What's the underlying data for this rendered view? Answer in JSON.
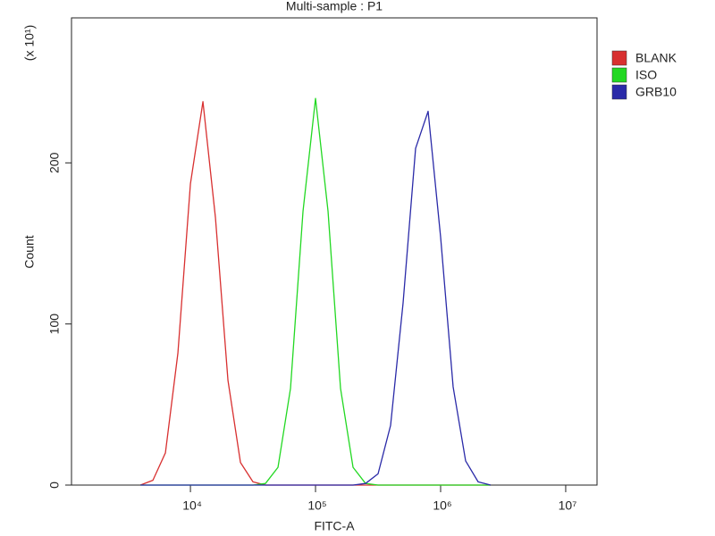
{
  "chart_data": {
    "type": "line",
    "title": "Multi-sample : P1",
    "x_label": "FITC-A",
    "y_label": "Count",
    "y_scale_label": "(x 10¹)",
    "x_scale": "log",
    "xlim": [
      1120,
      17800000
    ],
    "xticks": [
      {
        "value": 10000,
        "label": "10⁴"
      },
      {
        "value": 100000,
        "label": "10⁵"
      },
      {
        "value": 1000000,
        "label": "10⁶"
      },
      {
        "value": 10000000,
        "label": "10⁷"
      }
    ],
    "ylim": [
      0,
      290
    ],
    "yticks": [
      0,
      100,
      200
    ],
    "grid": false,
    "legend": "right",
    "x": [
      3981,
      5012,
      6310,
      7943,
      10000,
      12589,
      15849,
      19953,
      25119,
      31623,
      39811,
      50119,
      63096,
      79433,
      100000,
      125893,
      158489,
      199526,
      251189,
      316228,
      398107,
      501187,
      630957,
      794328,
      1000000,
      1258925,
      1584893,
      1995262,
      2511886
    ],
    "series": [
      {
        "name": "BLANK",
        "color": "#d83030",
        "values": [
          0,
          3,
          20,
          82,
          187,
          238,
          166,
          65,
          14,
          2,
          0,
          0,
          0,
          0,
          0,
          0,
          0,
          0,
          0,
          0,
          0,
          0,
          0,
          0,
          0,
          0,
          0,
          0,
          0
        ]
      },
      {
        "name": "ISO",
        "color": "#22d822",
        "values": [
          0,
          0,
          0,
          0,
          0,
          0,
          0,
          0,
          0,
          0,
          1,
          11,
          60,
          170,
          240,
          170,
          60,
          11,
          1,
          0,
          0,
          0,
          0,
          0,
          0,
          0,
          0,
          0,
          0
        ]
      },
      {
        "name": "GRB10",
        "color": "#2a2aa8",
        "values": [
          0,
          0,
          0,
          0,
          0,
          0,
          0,
          0,
          0,
          0,
          0,
          0,
          0,
          0,
          0,
          0,
          0,
          0,
          1,
          7,
          37,
          113,
          209,
          232,
          154,
          61,
          15,
          2,
          0
        ]
      }
    ]
  }
}
